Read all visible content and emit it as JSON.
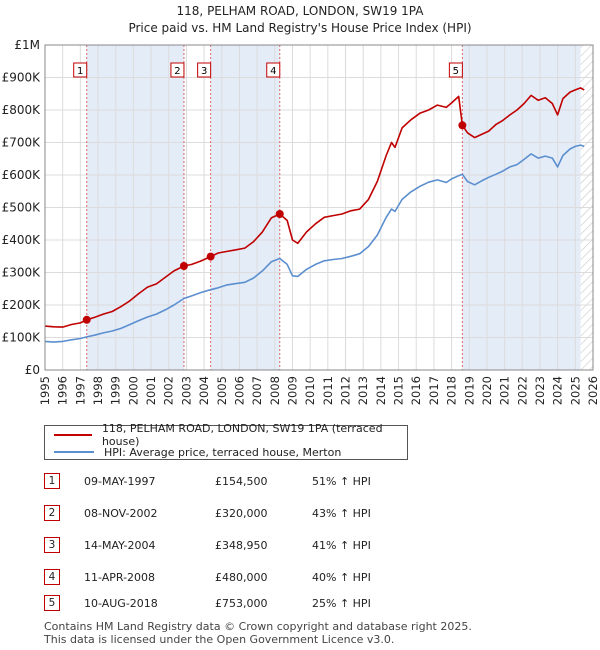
{
  "chart_data": {
    "type": "line",
    "title": "118, PELHAM ROAD, LONDON, SW19 1PA",
    "subtitle": "Price paid vs. HM Land Registry's House Price Index (HPI)",
    "xlim": [
      1995,
      2026
    ],
    "ylim": [
      0,
      1000000
    ],
    "x_ticks": [
      "1995",
      "1996",
      "1997",
      "1998",
      "1999",
      "2000",
      "2001",
      "2002",
      "2003",
      "2004",
      "2005",
      "2006",
      "2007",
      "2008",
      "2009",
      "2010",
      "2011",
      "2012",
      "2013",
      "2014",
      "2015",
      "2016",
      "2017",
      "2018",
      "2019",
      "2020",
      "2021",
      "2022",
      "2023",
      "2024",
      "2025",
      "2026"
    ],
    "y_ticks": [
      {
        "value": 0,
        "label": "£0"
      },
      {
        "value": 100000,
        "label": "£100K"
      },
      {
        "value": 200000,
        "label": "£200K"
      },
      {
        "value": 300000,
        "label": "£300K"
      },
      {
        "value": 400000,
        "label": "£400K"
      },
      {
        "value": 500000,
        "label": "£500K"
      },
      {
        "value": 600000,
        "label": "£600K"
      },
      {
        "value": 700000,
        "label": "£700K"
      },
      {
        "value": 800000,
        "label": "£800K"
      },
      {
        "value": 900000,
        "label": "£900K"
      },
      {
        "value": 1000000,
        "label": "£1M"
      }
    ],
    "grid": true,
    "shaded_ranges": [
      [
        1997.36,
        2002.86
      ],
      [
        2004.37,
        2008.28
      ],
      [
        2018.61,
        2025.3
      ]
    ],
    "hatched_from": 2025.3,
    "series": [
      {
        "name": "118, PELHAM ROAD, LONDON, SW19 1PA (terraced house)",
        "color": "#c00000",
        "points": [
          [
            1995.0,
            135000
          ],
          [
            1995.5,
            133000
          ],
          [
            1996.0,
            132000
          ],
          [
            1996.5,
            140000
          ],
          [
            1997.0,
            145000
          ],
          [
            1997.36,
            154500
          ],
          [
            1997.8,
            162000
          ],
          [
            1998.3,
            172000
          ],
          [
            1998.8,
            180000
          ],
          [
            1999.3,
            195000
          ],
          [
            1999.8,
            213000
          ],
          [
            2000.3,
            235000
          ],
          [
            2000.8,
            255000
          ],
          [
            2001.3,
            265000
          ],
          [
            2001.8,
            285000
          ],
          [
            2002.3,
            305000
          ],
          [
            2002.86,
            320000
          ],
          [
            2003.3,
            325000
          ],
          [
            2003.8,
            335000
          ],
          [
            2004.37,
            348950
          ],
          [
            2004.8,
            360000
          ],
          [
            2005.3,
            365000
          ],
          [
            2005.8,
            370000
          ],
          [
            2006.3,
            375000
          ],
          [
            2006.8,
            395000
          ],
          [
            2007.3,
            425000
          ],
          [
            2007.8,
            468000
          ],
          [
            2008.28,
            480000
          ],
          [
            2008.7,
            460000
          ],
          [
            2009.0,
            400000
          ],
          [
            2009.3,
            390000
          ],
          [
            2009.8,
            425000
          ],
          [
            2010.3,
            450000
          ],
          [
            2010.8,
            470000
          ],
          [
            2011.3,
            475000
          ],
          [
            2011.8,
            480000
          ],
          [
            2012.3,
            490000
          ],
          [
            2012.8,
            495000
          ],
          [
            2013.3,
            525000
          ],
          [
            2013.8,
            580000
          ],
          [
            2014.3,
            660000
          ],
          [
            2014.6,
            700000
          ],
          [
            2014.8,
            685000
          ],
          [
            2015.2,
            745000
          ],
          [
            2015.7,
            770000
          ],
          [
            2016.2,
            790000
          ],
          [
            2016.7,
            800000
          ],
          [
            2017.2,
            815000
          ],
          [
            2017.7,
            808000
          ],
          [
            2018.0,
            822000
          ],
          [
            2018.4,
            842000
          ],
          [
            2018.5,
            800000
          ],
          [
            2018.61,
            753000
          ],
          [
            2018.9,
            730000
          ],
          [
            2019.3,
            715000
          ],
          [
            2019.7,
            725000
          ],
          [
            2020.1,
            735000
          ],
          [
            2020.5,
            755000
          ],
          [
            2020.9,
            768000
          ],
          [
            2021.3,
            785000
          ],
          [
            2021.7,
            800000
          ],
          [
            2022.1,
            820000
          ],
          [
            2022.5,
            845000
          ],
          [
            2022.9,
            830000
          ],
          [
            2023.3,
            838000
          ],
          [
            2023.7,
            820000
          ],
          [
            2024.0,
            785000
          ],
          [
            2024.3,
            835000
          ],
          [
            2024.7,
            855000
          ],
          [
            2025.0,
            862000
          ],
          [
            2025.3,
            868000
          ],
          [
            2025.5,
            862000
          ]
        ]
      },
      {
        "name": "HPI: Average price, terraced house, Merton",
        "color": "#5b8fcf",
        "points": [
          [
            1995.0,
            88000
          ],
          [
            1995.5,
            86000
          ],
          [
            1996.0,
            88000
          ],
          [
            1996.5,
            93000
          ],
          [
            1997.0,
            97000
          ],
          [
            1997.36,
            102000
          ],
          [
            1997.8,
            107000
          ],
          [
            1998.3,
            114000
          ],
          [
            1998.8,
            120000
          ],
          [
            1999.3,
            128000
          ],
          [
            1999.8,
            140000
          ],
          [
            2000.3,
            152000
          ],
          [
            2000.8,
            163000
          ],
          [
            2001.3,
            172000
          ],
          [
            2001.8,
            185000
          ],
          [
            2002.3,
            200000
          ],
          [
            2002.86,
            220000
          ],
          [
            2003.3,
            228000
          ],
          [
            2003.8,
            238000
          ],
          [
            2004.37,
            247000
          ],
          [
            2004.8,
            253000
          ],
          [
            2005.3,
            262000
          ],
          [
            2005.8,
            266000
          ],
          [
            2006.3,
            270000
          ],
          [
            2006.8,
            283000
          ],
          [
            2007.3,
            305000
          ],
          [
            2007.8,
            333000
          ],
          [
            2008.28,
            343000
          ],
          [
            2008.7,
            325000
          ],
          [
            2009.0,
            290000
          ],
          [
            2009.3,
            288000
          ],
          [
            2009.8,
            310000
          ],
          [
            2010.3,
            325000
          ],
          [
            2010.8,
            336000
          ],
          [
            2011.3,
            340000
          ],
          [
            2011.8,
            343000
          ],
          [
            2012.3,
            350000
          ],
          [
            2012.8,
            358000
          ],
          [
            2013.3,
            380000
          ],
          [
            2013.8,
            415000
          ],
          [
            2014.3,
            470000
          ],
          [
            2014.6,
            495000
          ],
          [
            2014.8,
            488000
          ],
          [
            2015.2,
            525000
          ],
          [
            2015.7,
            548000
          ],
          [
            2016.2,
            565000
          ],
          [
            2016.7,
            578000
          ],
          [
            2017.2,
            585000
          ],
          [
            2017.7,
            577000
          ],
          [
            2018.0,
            588000
          ],
          [
            2018.4,
            598000
          ],
          [
            2018.61,
            602000
          ],
          [
            2018.9,
            580000
          ],
          [
            2019.3,
            570000
          ],
          [
            2019.7,
            582000
          ],
          [
            2020.1,
            593000
          ],
          [
            2020.5,
            602000
          ],
          [
            2020.9,
            612000
          ],
          [
            2021.3,
            625000
          ],
          [
            2021.7,
            632000
          ],
          [
            2022.1,
            648000
          ],
          [
            2022.5,
            665000
          ],
          [
            2022.9,
            652000
          ],
          [
            2023.3,
            658000
          ],
          [
            2023.7,
            652000
          ],
          [
            2024.0,
            625000
          ],
          [
            2024.3,
            660000
          ],
          [
            2024.7,
            680000
          ],
          [
            2025.0,
            688000
          ],
          [
            2025.3,
            692000
          ],
          [
            2025.5,
            688000
          ]
        ]
      }
    ],
    "sale_markers": [
      {
        "label": "1",
        "x": 1997.36,
        "value": 154500
      },
      {
        "label": "2",
        "x": 2002.86,
        "value": 320000
      },
      {
        "label": "3",
        "x": 2004.37,
        "value": 348950
      },
      {
        "label": "4",
        "x": 2008.28,
        "value": 480000
      },
      {
        "label": "5",
        "x": 2018.61,
        "value": 753000
      }
    ]
  },
  "legend": {
    "property_label": "118, PELHAM ROAD, LONDON, SW19 1PA (terraced house)",
    "hpi_label": "HPI: Average price, terraced house, Merton",
    "property_color": "#c00000",
    "hpi_color": "#5b8fcf"
  },
  "sales": [
    {
      "num": "1",
      "date": "09-MAY-1997",
      "price": "£154,500",
      "hpi": "51% ↑ HPI"
    },
    {
      "num": "2",
      "date": "08-NOV-2002",
      "price": "£320,000",
      "hpi": "43% ↑ HPI"
    },
    {
      "num": "3",
      "date": "14-MAY-2004",
      "price": "£348,950",
      "hpi": "41% ↑ HPI"
    },
    {
      "num": "4",
      "date": "11-APR-2008",
      "price": "£480,000",
      "hpi": "40% ↑ HPI"
    },
    {
      "num": "5",
      "date": "10-AUG-2018",
      "price": "£753,000",
      "hpi": "25% ↑ HPI"
    }
  ],
  "footer": {
    "line1": "Contains HM Land Registry data © Crown copyright and database right 2025.",
    "line2": "This data is licensed under the Open Government Licence v3.0."
  }
}
